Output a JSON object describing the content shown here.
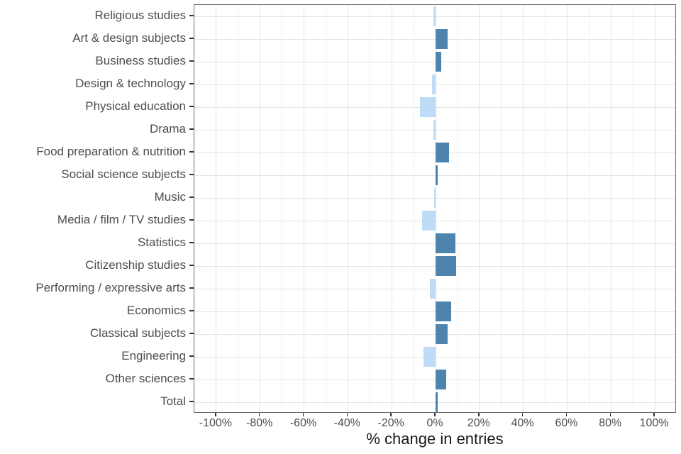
{
  "chart_data": {
    "type": "bar",
    "orientation": "horizontal",
    "title": "",
    "xlabel": "% change in entries",
    "ylabel": "",
    "categories": [
      "Religious studies",
      "Art & design subjects",
      "Business studies",
      "Design & technology",
      "Physical education",
      "Drama",
      "Food preparation & nutrition",
      "Social science subjects",
      "Music",
      "Media / film / TV studies",
      "Statistics",
      "Citizenship studies",
      "Performing / expressive arts",
      "Economics",
      "Classical subjects",
      "Engineering",
      "Other sciences",
      "Total"
    ],
    "values": [
      -1,
      5.5,
      2.5,
      -1.5,
      -7,
      -1,
      6,
      1,
      -0.5,
      -6,
      9,
      9.5,
      -2.5,
      7,
      5.5,
      -5.5,
      5,
      1
    ],
    "value_unit": "%",
    "xlim": [
      -110,
      110
    ],
    "x_ticks": [
      -100,
      -80,
      -60,
      -40,
      -20,
      0,
      20,
      40,
      60,
      80,
      100
    ],
    "x_tick_labels": [
      "-100%",
      "-80%",
      "-60%",
      "-40%",
      "-20%",
      "0%",
      "20%",
      "40%",
      "60%",
      "80%",
      "100%"
    ],
    "x_minor_ticks": [
      -90,
      -70,
      -50,
      -30,
      -10,
      10,
      30,
      50,
      70,
      90
    ],
    "grid": "major and minor vertical, major horizontal at each category",
    "legend": "none",
    "colors": {
      "positive_bar": "#4d84ae",
      "negative_bar": "#bedcf7",
      "grid_major": "#e4e4e4",
      "grid_minor": "#f1f1f1",
      "panel_border": "#6b6b6b",
      "tick_mark": "#333333",
      "axis_text": "#4d4d4d",
      "title_text": "#1a1a1a",
      "background": "#ffffff"
    }
  }
}
